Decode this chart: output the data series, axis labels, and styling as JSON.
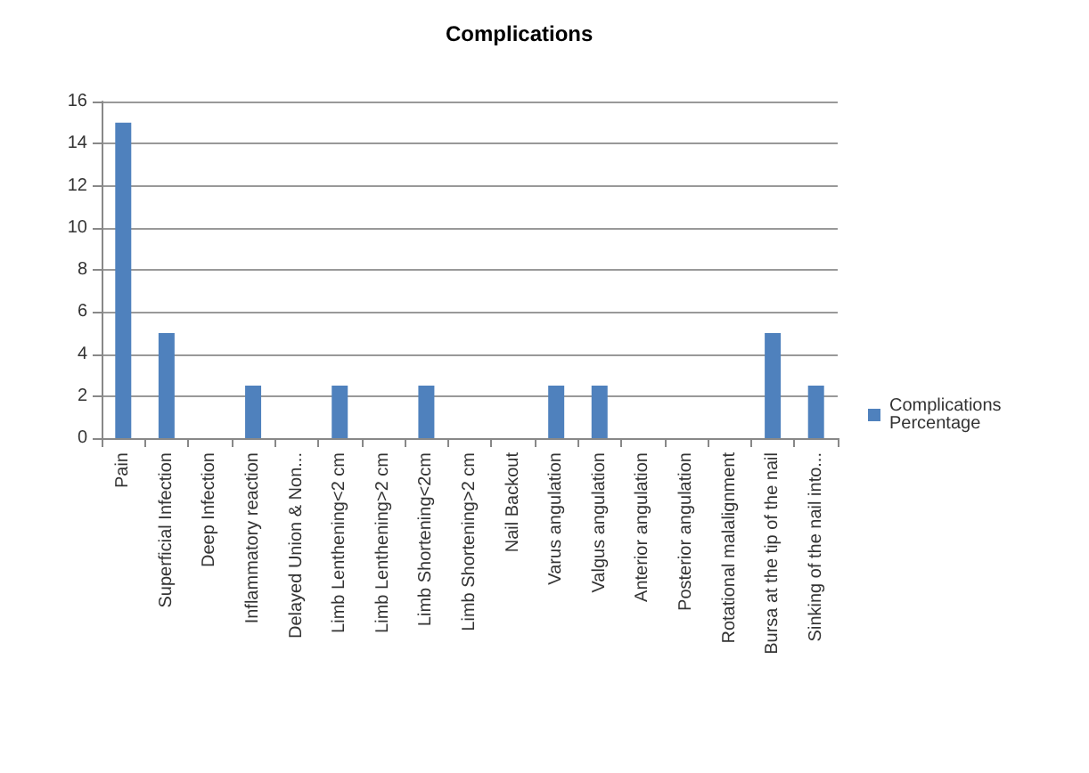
{
  "chart_data": {
    "type": "bar",
    "title": "Complications",
    "categories": [
      "Pain",
      "Superficial Infection",
      "Deep Infection",
      "Inflammatory reaction",
      "Delayed Union & Non...",
      "Limb Lenthening<2 cm",
      "Limb Lenthening>2 cm",
      "Limb Shortening<2cm",
      "Limb Shortening>2 cm",
      "Nail Backout",
      "Varus angulation",
      "Valgus angulation",
      "Anterior angulation",
      "Posterior angulation",
      "Rotational malalignment",
      "Bursa at the tip of the nail",
      "Sinking of the nail into..."
    ],
    "series": [
      {
        "name": "Complications Percentage",
        "color": "#4f81bd",
        "values": [
          15,
          5,
          0,
          2.5,
          0,
          2.5,
          0,
          2.5,
          0,
          0,
          2.5,
          2.5,
          0,
          0,
          0,
          5,
          2.5
        ]
      }
    ],
    "ylim": [
      0,
      16
    ],
    "yticks": [
      0,
      2,
      4,
      6,
      8,
      10,
      12,
      14,
      16
    ],
    "grid": "y",
    "legend": "right"
  }
}
